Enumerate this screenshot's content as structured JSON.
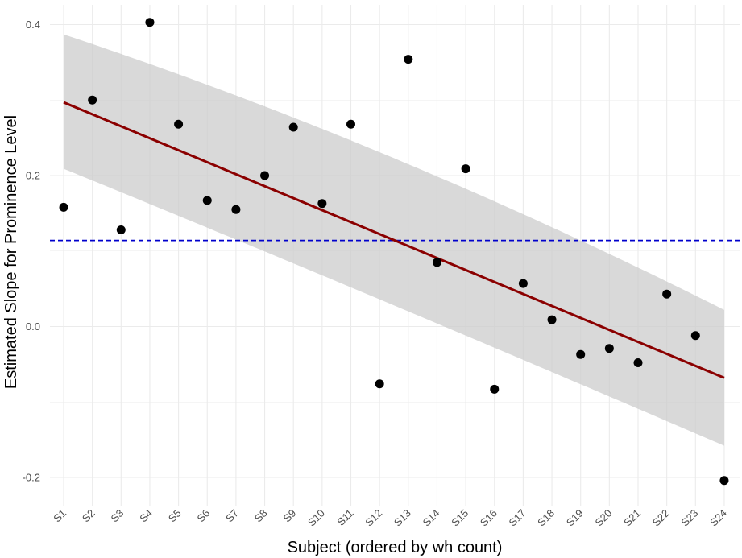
{
  "chart_data": {
    "type": "scatter",
    "xlabel": "Subject (ordered by wh count)",
    "ylabel": "Estimated Slope for Prominence Level",
    "categories": [
      "S1",
      "S2",
      "S3",
      "S4",
      "S5",
      "S6",
      "S7",
      "S8",
      "S9",
      "S10",
      "S11",
      "S12",
      "S13",
      "S14",
      "S15",
      "S16",
      "S17",
      "S18",
      "S19",
      "S20",
      "S21",
      "S22",
      "S23",
      "S24"
    ],
    "y_ticks": [
      -0.2,
      0.0,
      0.2,
      0.4
    ],
    "y_tick_labels": [
      "-0.2",
      "0.0",
      "0.2",
      "0.4"
    ],
    "ylim": [
      -0.235,
      0.42
    ],
    "series": [
      {
        "values": [
          0.158,
          0.3,
          0.128,
          0.403,
          0.268,
          0.167,
          0.155,
          0.2,
          0.264,
          0.163,
          0.268,
          -0.076,
          0.354,
          0.085,
          0.209,
          -0.083,
          0.057,
          0.009,
          -0.037,
          -0.029,
          -0.048,
          0.043,
          -0.012,
          -0.204
        ]
      }
    ],
    "trend_line": {
      "start": 0.297,
      "end": -0.068,
      "color": "#8b0000"
    },
    "confidence_band": {
      "upper": [
        0.387,
        0.223,
        0.022
      ],
      "lower": [
        0.209,
        0.028,
        -0.158
      ],
      "at_index": [
        0,
        11.5,
        23
      ],
      "color": "#cccccc"
    },
    "reference_line": {
      "y": 0.114,
      "color": "#0000cc",
      "style": "dashed"
    },
    "colors": {
      "point": "#000000",
      "grid": "#ebebeb"
    },
    "grid": true,
    "legend": "none"
  }
}
